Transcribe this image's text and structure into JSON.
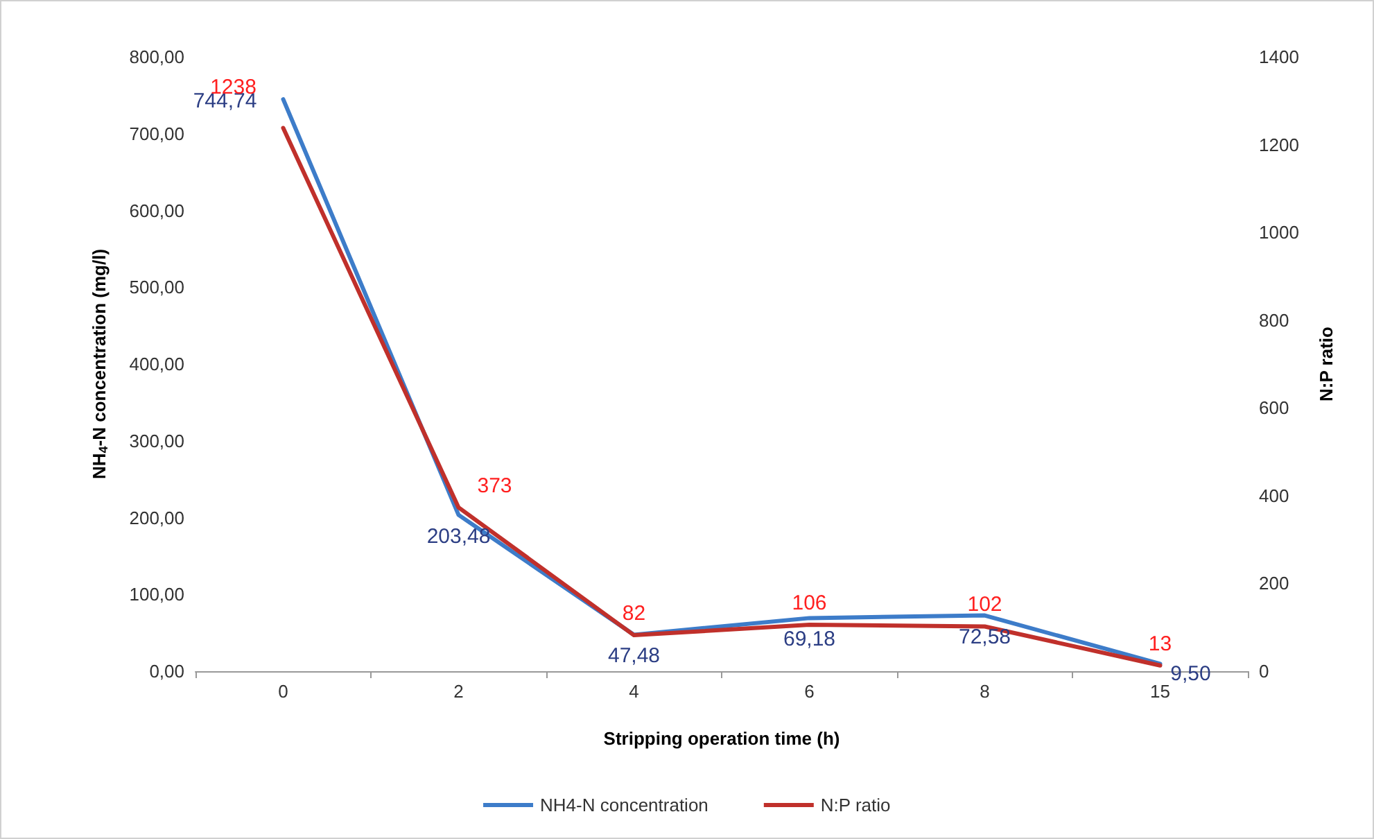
{
  "chart_data": {
    "type": "line",
    "xlabel": "Stripping operation time (h)",
    "ylabel": "NH$_{4}$-N concentration (mg/l)",
    "y2label": "N:P ratio",
    "categories": [
      "0",
      "2",
      "4",
      "6",
      "8",
      "15"
    ],
    "series": [
      {
        "name": "NH4-N concentration",
        "color": "#3d7cc9",
        "values": [
          744.74,
          203.48,
          47.48,
          69.18,
          72.58,
          9.5
        ],
        "value_labels": [
          "744,74",
          "203,48",
          "47,48",
          "69,18",
          "72,58",
          "9,50"
        ]
      },
      {
        "name": "N:P ratio",
        "color": "#c0302b",
        "axis": "y2",
        "values": [
          1238,
          373,
          82,
          106,
          102,
          13
        ],
        "value_labels": [
          "1238",
          "373",
          "82",
          "106",
          "102",
          "13"
        ]
      }
    ],
    "ylim": [
      0,
      800
    ],
    "yticks": [
      {
        "value": 0,
        "label": "0,00"
      },
      {
        "value": 100,
        "label": "100,00"
      },
      {
        "value": 200,
        "label": "200,00"
      },
      {
        "value": 300,
        "label": "300,00"
      },
      {
        "value": 400,
        "label": "400,00"
      },
      {
        "value": 500,
        "label": "500,00"
      },
      {
        "value": 600,
        "label": "600,00"
      },
      {
        "value": 700,
        "label": "700,00"
      },
      {
        "value": 800,
        "label": "800,00"
      }
    ],
    "y2lim": [
      0,
      1400
    ],
    "y2ticks": [
      0,
      200,
      400,
      600,
      800,
      1000,
      1200,
      1400
    ],
    "legend": "bottom",
    "marker": "none",
    "line_style": "solid"
  }
}
